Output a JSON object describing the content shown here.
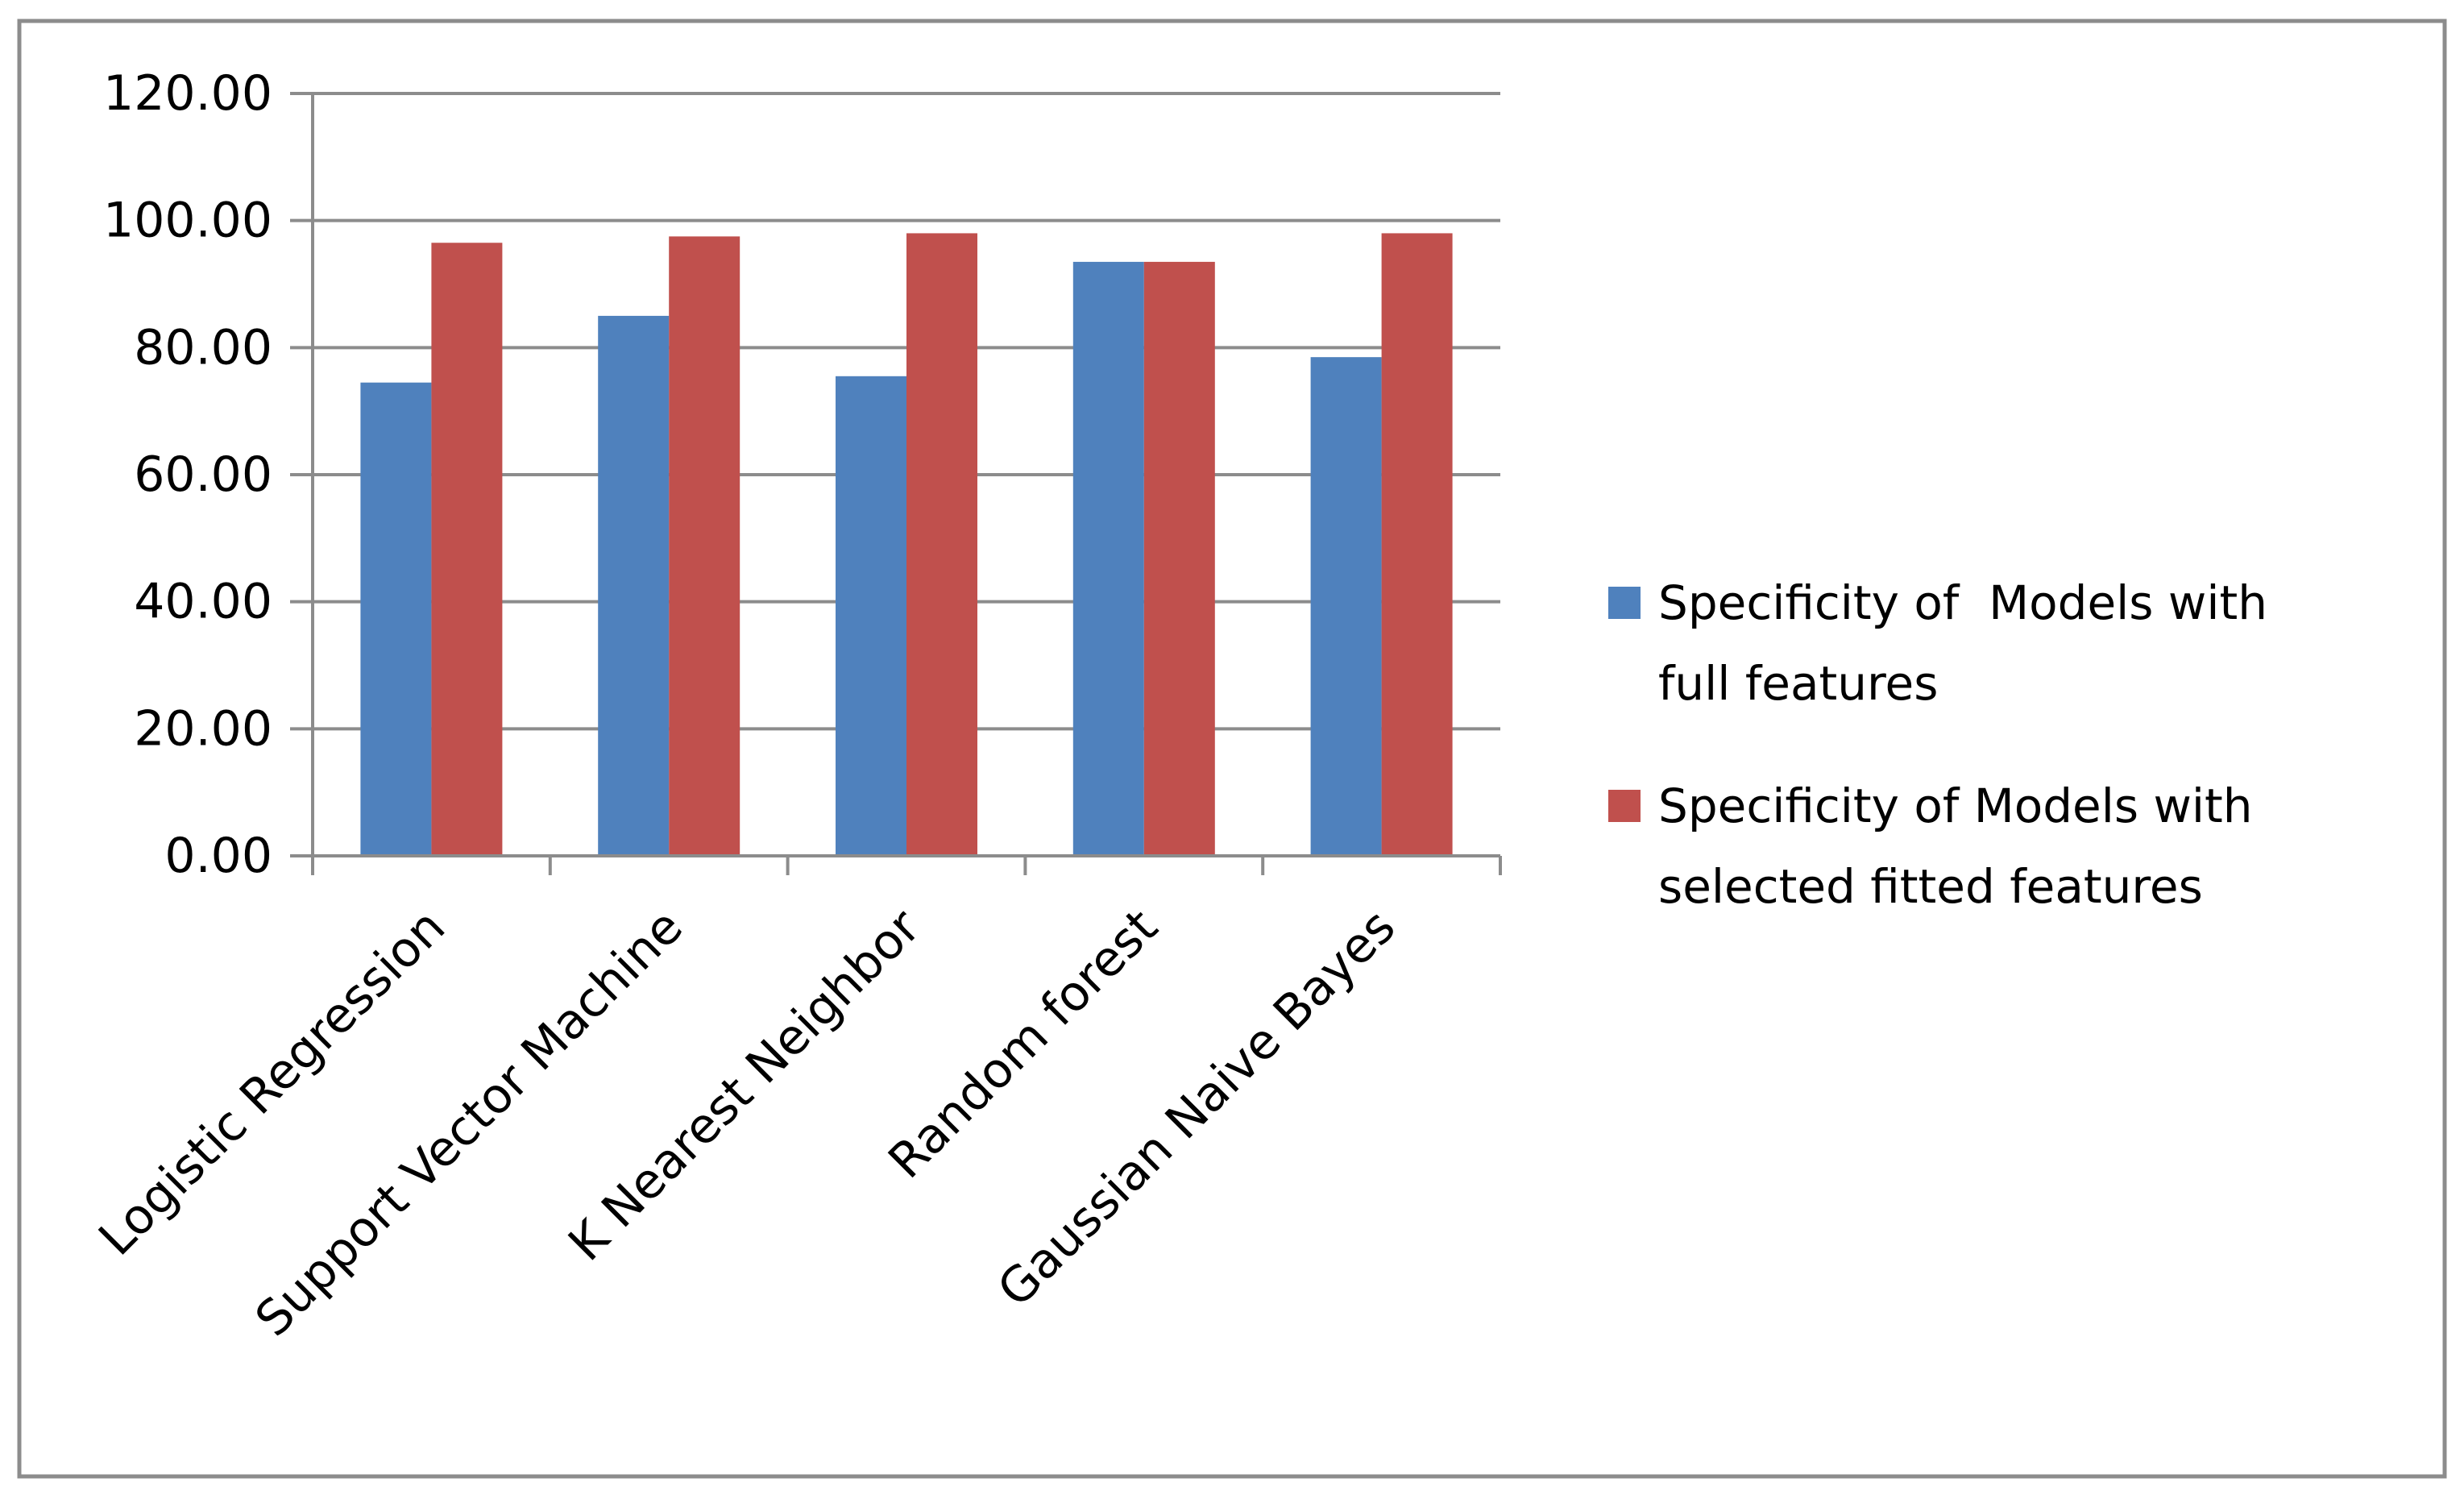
{
  "chart_data": {
    "type": "bar",
    "categories": [
      "Logistic Regression",
      "Support Vector Machine",
      "K Nearest Neighbor",
      "Random forest",
      "Gaussian Naive Bayes"
    ],
    "series": [
      {
        "name_lines": [
          "Specificity of  Models with",
          "full features"
        ],
        "color": "#4F81BD",
        "values": [
          74.5,
          85.0,
          75.5,
          93.5,
          78.5
        ]
      },
      {
        "name_lines": [
          "Specificity of Models with",
          "selected fitted features"
        ],
        "color": "#C0504D",
        "values": [
          96.5,
          97.5,
          98.0,
          93.5,
          98.0
        ]
      }
    ],
    "yticks": [
      "0.00",
      "20.00",
      "40.00",
      "60.00",
      "80.00",
      "100.00",
      "120.00"
    ],
    "ylim": [
      0,
      120
    ],
    "grid": true,
    "legend_position": "right"
  }
}
